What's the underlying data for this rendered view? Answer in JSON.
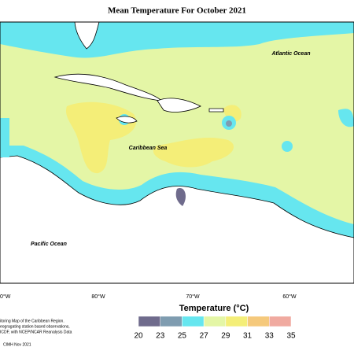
{
  "header": {
    "title": "Mean Temperature For October 2021"
  },
  "map": {
    "labels": [
      "Atlantic Ocean",
      "Caribbean Sea",
      "Pacific Ocean"
    ],
    "longitudes": [
      "0°W",
      "80°W",
      "70°W",
      "60°W"
    ]
  },
  "legend": {
    "title": "Temperature (°C)",
    "ticks": [
      20,
      23,
      25,
      27,
      29,
      31,
      33,
      35
    ],
    "colors": [
      "#6f6b8c",
      "#7f9cb0",
      "#66e6ef",
      "#e4f6a6",
      "#f4ee78",
      "#f5c97c",
      "#f0aaa0"
    ]
  },
  "footer": {
    "notes": [
      "itoring Map of the Caribbean Region.",
      "eogragating station based observations,",
      "ICDF, with NCEP/NCAR Reanalysis Data"
    ],
    "credit": "CIMH Nov 2021"
  }
}
